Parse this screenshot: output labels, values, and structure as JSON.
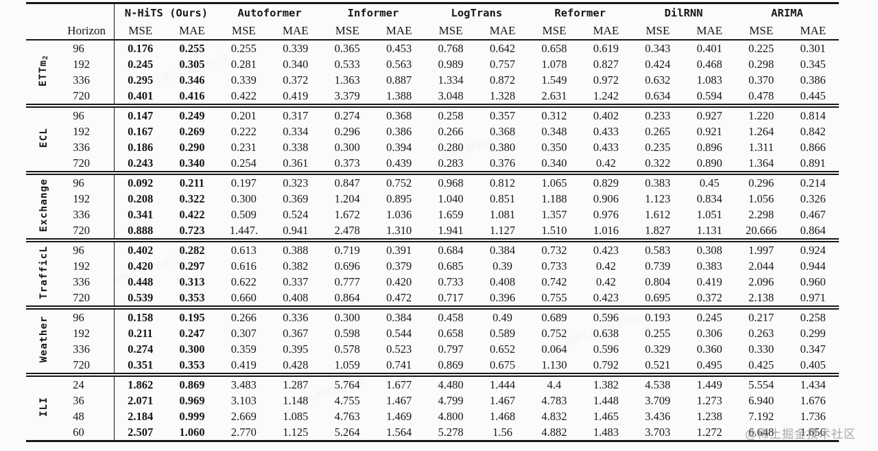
{
  "watermark": {
    "text": "@稀土掘金技术社区",
    "color": "#9a9a9a"
  },
  "colors": {
    "text": "#161616",
    "rule": "#161616",
    "background": "#fbfbfb",
    "bold_best": "#000000"
  },
  "table": {
    "horizon_label": "Horizon",
    "metrics": [
      "MSE",
      "MAE"
    ],
    "models": [
      "N-HiTS (Ours)",
      "Autoformer",
      "Informer",
      "LogTrans",
      "Reformer",
      "DilRNN",
      "ARIMA"
    ],
    "best_model_index": 0,
    "groups": [
      {
        "name": "ETTm",
        "sub": "2",
        "slug": "ettm2",
        "rows": [
          {
            "horizon": "96",
            "values": [
              "0.176",
              "0.255",
              "0.255",
              "0.339",
              "0.365",
              "0.453",
              "0.768",
              "0.642",
              "0.658",
              "0.619",
              "0.343",
              "0.401",
              "0.225",
              "0.301"
            ]
          },
          {
            "horizon": "192",
            "values": [
              "0.245",
              "0.305",
              "0.281",
              "0.340",
              "0.533",
              "0.563",
              "0.989",
              "0.757",
              "1.078",
              "0.827",
              "0.424",
              "0.468",
              "0.298",
              "0.345"
            ]
          },
          {
            "horizon": "336",
            "values": [
              "0.295",
              "0.346",
              "0.339",
              "0.372",
              "1.363",
              "0.887",
              "1.334",
              "0.872",
              "1.549",
              "0.972",
              "0.632",
              "1.083",
              "0.370",
              "0.386"
            ]
          },
          {
            "horizon": "720",
            "values": [
              "0.401",
              "0.416",
              "0.422",
              "0.419",
              "3.379",
              "1.388",
              "3.048",
              "1.328",
              "2.631",
              "1.242",
              "0.634",
              "0.594",
              "0.478",
              "0.445"
            ]
          }
        ]
      },
      {
        "name": "ECL",
        "sub": "",
        "slug": "ecl",
        "rows": [
          {
            "horizon": "96",
            "values": [
              "0.147",
              "0.249",
              "0.201",
              "0.317",
              "0.274",
              "0.368",
              "0.258",
              "0.357",
              "0.312",
              "0.402",
              "0.233",
              "0.927",
              "1.220",
              "0.814"
            ]
          },
          {
            "horizon": "192",
            "values": [
              "0.167",
              "0.269",
              "0.222",
              "0.334",
              "0.296",
              "0.386",
              "0.266",
              "0.368",
              "0.348",
              "0.433",
              "0.265",
              "0.921",
              "1.264",
              "0.842"
            ]
          },
          {
            "horizon": "336",
            "values": [
              "0.186",
              "0.290",
              "0.231",
              "0.338",
              "0.300",
              "0.394",
              "0.280",
              "0.380",
              "0.350",
              "0.433",
              "0.235",
              "0.896",
              "1.311",
              "0.866"
            ]
          },
          {
            "horizon": "720",
            "values": [
              "0.243",
              "0.340",
              "0.254",
              "0.361",
              "0.373",
              "0.439",
              "0.283",
              "0.376",
              "0.340",
              "0.42",
              "0.322",
              "0.890",
              "1.364",
              "0.891"
            ]
          }
        ]
      },
      {
        "name": "Exchange",
        "sub": "",
        "slug": "exchange",
        "rows": [
          {
            "horizon": "96",
            "values": [
              "0.092",
              "0.211",
              "0.197",
              "0.323",
              "0.847",
              "0.752",
              "0.968",
              "0.812",
              "1.065",
              "0.829",
              "0.383",
              "0.45",
              "0.296",
              "0.214"
            ]
          },
          {
            "horizon": "192",
            "values": [
              "0.208",
              "0.322",
              "0.300",
              "0.369",
              "1.204",
              "0.895",
              "1.040",
              "0.851",
              "1.188",
              "0.906",
              "1.123",
              "0.834",
              "1.056",
              "0.326"
            ]
          },
          {
            "horizon": "336",
            "values": [
              "0.341",
              "0.422",
              "0.509",
              "0.524",
              "1.672",
              "1.036",
              "1.659",
              "1.081",
              "1.357",
              "0.976",
              "1.612",
              "1.051",
              "2.298",
              "0.467"
            ]
          },
          {
            "horizon": "720",
            "values": [
              "0.888",
              "0.723",
              "1.447.",
              "0.941",
              "2.478",
              "1.310",
              "1.941",
              "1.127",
              "1.510",
              "1.016",
              "1.827",
              "1.131",
              "20.666",
              "0.864"
            ]
          }
        ]
      },
      {
        "name": "TrafficL",
        "sub": "",
        "slug": "trafficl",
        "rows": [
          {
            "horizon": "96",
            "values": [
              "0.402",
              "0.282",
              "0.613",
              "0.388",
              "0.719",
              "0.391",
              "0.684",
              "0.384",
              "0.732",
              "0.423",
              "0.583",
              "0.308",
              "1.997",
              "0.924"
            ]
          },
          {
            "horizon": "192",
            "values": [
              "0.420",
              "0.297",
              "0.616",
              "0.382",
              "0.696",
              "0.379",
              "0.685",
              "0.39",
              "0.733",
              "0.42",
              "0.739",
              "0.383",
              "2.044",
              "0.944"
            ]
          },
          {
            "horizon": "336",
            "values": [
              "0.448",
              "0.313",
              "0.622",
              "0.337",
              "0.777",
              "0.420",
              "0.733",
              "0.408",
              "0.742",
              "0.42",
              "0.804",
              "0.419",
              "2.096",
              "0.960"
            ]
          },
          {
            "horizon": "720",
            "values": [
              "0.539",
              "0.353",
              "0.660",
              "0.408",
              "0.864",
              "0.472",
              "0.717",
              "0.396",
              "0.755",
              "0.423",
              "0.695",
              "0.372",
              "2.138",
              "0.971"
            ]
          }
        ]
      },
      {
        "name": "Weather",
        "sub": "",
        "slug": "weather",
        "rows": [
          {
            "horizon": "96",
            "values": [
              "0.158",
              "0.195",
              "0.266",
              "0.336",
              "0.300",
              "0.384",
              "0.458",
              "0.49",
              "0.689",
              "0.596",
              "0.193",
              "0.245",
              "0.217",
              "0.258"
            ]
          },
          {
            "horizon": "192",
            "values": [
              "0.211",
              "0.247",
              "0.307",
              "0.367",
              "0.598",
              "0.544",
              "0.658",
              "0.589",
              "0.752",
              "0.638",
              "0.255",
              "0.306",
              "0.263",
              "0.299"
            ]
          },
          {
            "horizon": "336",
            "values": [
              "0.274",
              "0.300",
              "0.359",
              "0.395",
              "0.578",
              "0.523",
              "0.797",
              "0.652",
              "0.064",
              "0.596",
              "0.329",
              "0.360",
              "0.330",
              "0.347"
            ]
          },
          {
            "horizon": "720",
            "values": [
              "0.351",
              "0.353",
              "0.419",
              "0.428",
              "1.059",
              "0.741",
              "0.869",
              "0.675",
              "1.130",
              "0.792",
              "0.521",
              "0.495",
              "0.425",
              "0.405"
            ]
          }
        ]
      },
      {
        "name": "ILI",
        "sub": "",
        "slug": "ili",
        "rows": [
          {
            "horizon": "24",
            "values": [
              "1.862",
              "0.869",
              "3.483",
              "1.287",
              "5.764",
              "1.677",
              "4.480",
              "1.444",
              "4.4",
              "1.382",
              "4.538",
              "1.449",
              "5.554",
              "1.434"
            ]
          },
          {
            "horizon": "36",
            "values": [
              "2.071",
              "0.969",
              "3.103",
              "1.148",
              "4.755",
              "1.467",
              "4.799",
              "1.467",
              "4.783",
              "1.448",
              "3.709",
              "1.273",
              "6.940",
              "1.676"
            ]
          },
          {
            "horizon": "48",
            "values": [
              "2.184",
              "0.999",
              "2.669",
              "1.085",
              "4.763",
              "1.469",
              "4.800",
              "1.468",
              "4.832",
              "1.465",
              "3.436",
              "1.238",
              "7.192",
              "1.736"
            ]
          },
          {
            "horizon": "60",
            "values": [
              "2.507",
              "1.060",
              "2.770",
              "1.125",
              "5.264",
              "1.564",
              "5.278",
              "1.56",
              "4.882",
              "1.483",
              "3.703",
              "1.272",
              "6.648",
              "1.656"
            ]
          }
        ]
      }
    ]
  }
}
